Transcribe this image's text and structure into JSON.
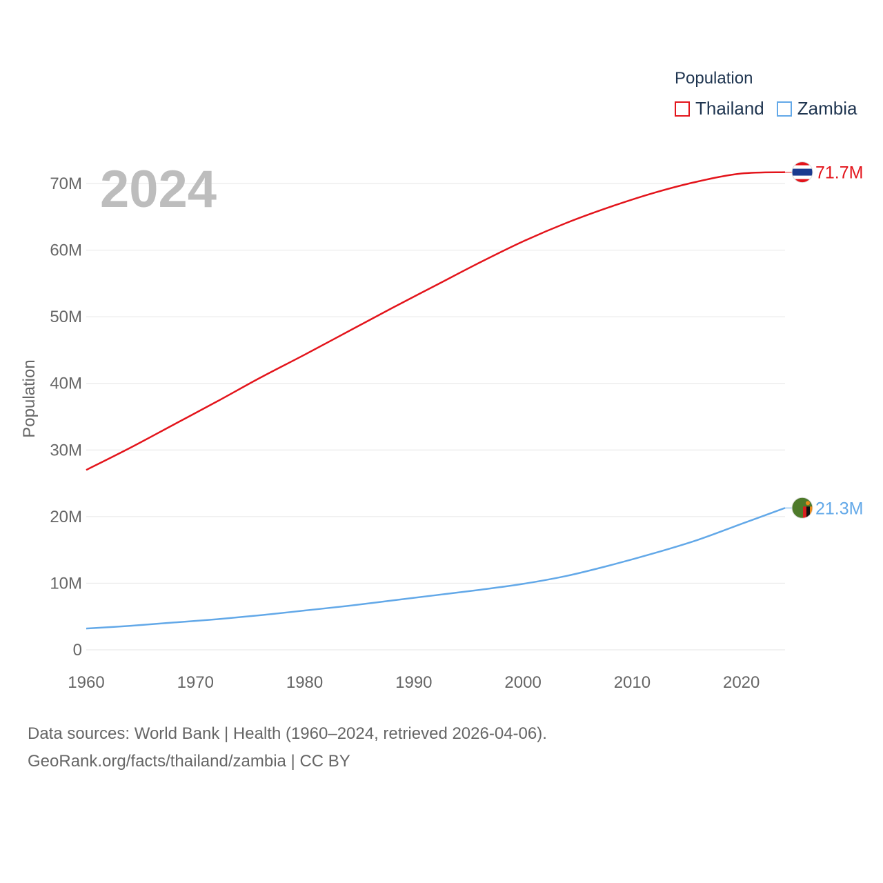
{
  "chart_data": {
    "type": "line",
    "title": "",
    "year_label": "2024",
    "xlabel": "",
    "ylabel": "Population",
    "xlim": [
      1960,
      2024
    ],
    "ylim": [
      0,
      75
    ],
    "x_ticks": [
      1960,
      1970,
      1980,
      1990,
      2000,
      2010,
      2020
    ],
    "y_ticks": [
      0,
      10,
      20,
      30,
      40,
      50,
      60,
      70
    ],
    "y_tick_labels": [
      "0",
      "10M",
      "20M",
      "30M",
      "40M",
      "50M",
      "60M",
      "70M"
    ],
    "grid": true,
    "legend_title": "Population",
    "legend_position": "top-right",
    "series": [
      {
        "name": "Thailand",
        "color": "#e3141b",
        "end_label": "71.7M",
        "flag": "thailand-flag",
        "x": [
          1960,
          1964,
          1968,
          1972,
          1976,
          1980,
          1984,
          1988,
          1992,
          1996,
          2000,
          2004,
          2008,
          2012,
          2016,
          2020,
          2024
        ],
        "y": [
          27.0,
          30.3,
          33.8,
          37.3,
          40.9,
          44.3,
          47.8,
          51.3,
          54.7,
          58.1,
          61.3,
          64.1,
          66.5,
          68.6,
          70.3,
          71.5,
          71.7
        ]
      },
      {
        "name": "Zambia",
        "color": "#62a8e8",
        "end_label": "21.3M",
        "flag": "zambia-flag",
        "x": [
          1960,
          1964,
          1968,
          1972,
          1976,
          1980,
          1984,
          1988,
          1992,
          1996,
          2000,
          2004,
          2008,
          2012,
          2016,
          2020,
          2024
        ],
        "y": [
          3.2,
          3.6,
          4.1,
          4.6,
          5.2,
          5.9,
          6.6,
          7.4,
          8.2,
          9.0,
          9.9,
          11.1,
          12.7,
          14.5,
          16.5,
          18.9,
          21.3
        ]
      }
    ]
  },
  "footer": {
    "line1": "Data sources: World Bank | Health (1960–2024, retrieved 2026-04-06).",
    "line2": "GeoRank.org/facts/thailand/zambia | CC BY"
  }
}
